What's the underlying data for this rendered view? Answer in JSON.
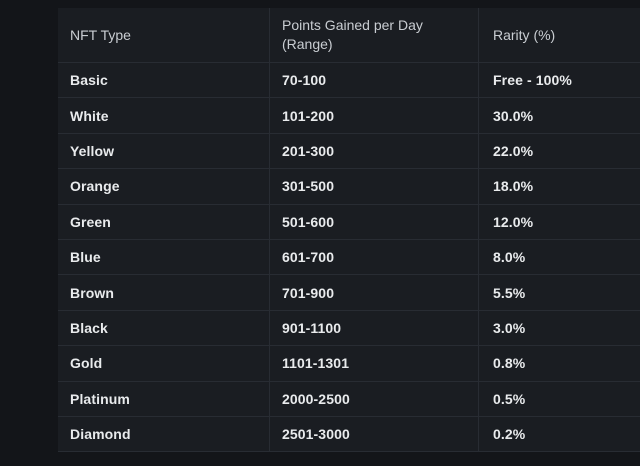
{
  "table": {
    "columns": [
      {
        "label": "NFT Type"
      },
      {
        "label": "Points Gained per Day",
        "sublabel": "(Range)"
      },
      {
        "label": "Rarity (%)"
      }
    ],
    "rows": [
      {
        "type": "Basic",
        "points": "70-100",
        "rarity": "Free - 100%"
      },
      {
        "type": "White",
        "points": "101-200",
        "rarity": "30.0%"
      },
      {
        "type": "Yellow",
        "points": "201-300",
        "rarity": "22.0%"
      },
      {
        "type": "Orange",
        "points": "301-500",
        "rarity": "18.0%"
      },
      {
        "type": "Green",
        "points": "501-600",
        "rarity": "12.0%"
      },
      {
        "type": "Blue",
        "points": "601-700",
        "rarity": "8.0%"
      },
      {
        "type": "Brown",
        "points": "701-900",
        "rarity": "5.5%"
      },
      {
        "type": "Black",
        "points": "901-1100",
        "rarity": "3.0%"
      },
      {
        "type": "Gold",
        "points": "1101-1301",
        "rarity": "0.8%"
      },
      {
        "type": "Platinum",
        "points": "2000-2500",
        "rarity": "0.5%"
      },
      {
        "type": "Diamond",
        "points": "2501-3000",
        "rarity": "0.2%"
      }
    ]
  },
  "colors": {
    "page_bg": "#131519",
    "table_bg": "#1a1d22",
    "line": "#282c33",
    "header_text": "#c9cdd2",
    "body_text": "#e9ebed"
  }
}
